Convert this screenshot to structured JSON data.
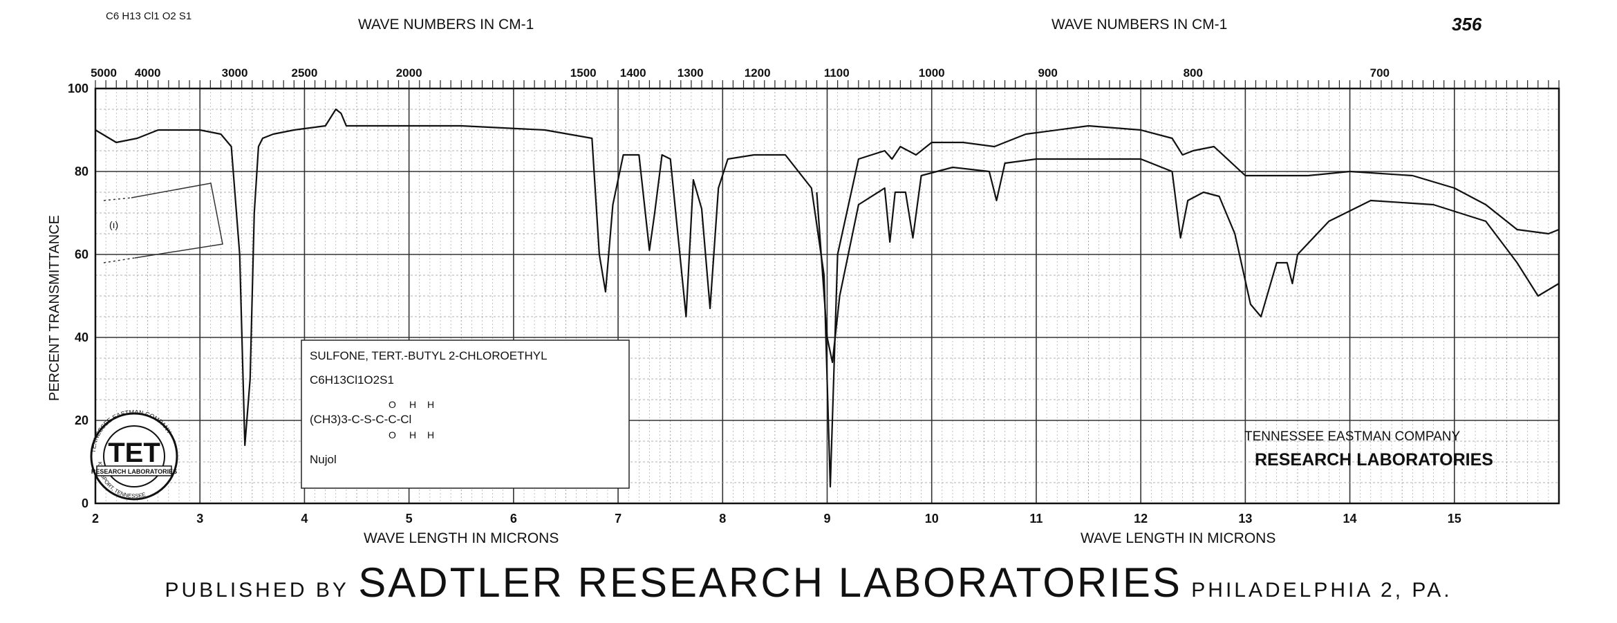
{
  "chart_data": {
    "type": "line",
    "top_left_note": "C6 H13 Cl1 O2 S1",
    "sample_number": "356",
    "top_axis_label_left": "WAVE NUMBERS IN CM-1",
    "top_axis_label_right": "WAVE NUMBERS IN CM-1",
    "xlabel_left": "WAVE LENGTH IN MICRONS",
    "xlabel_right": "WAVE LENGTH IN MICRONS",
    "ylabel": "PERCENT TRANSMITTANCE",
    "xlim": [
      2,
      16
    ],
    "ylim": [
      0,
      100
    ],
    "x_ticks": [
      2,
      3,
      4,
      5,
      6,
      7,
      8,
      9,
      10,
      11,
      12,
      13,
      14,
      15
    ],
    "y_ticks": [
      0,
      20,
      40,
      60,
      80,
      100
    ],
    "grid": true,
    "wavenumber_ticks": [
      {
        "label": "5000",
        "micron": 2.0
      },
      {
        "label": "4000",
        "micron": 2.5
      },
      {
        "label": "3000",
        "micron": 3.333
      },
      {
        "label": "2500",
        "micron": 4.0
      },
      {
        "label": "2000",
        "micron": 5.0
      },
      {
        "label": "1500",
        "micron": 6.667
      },
      {
        "label": "1400",
        "micron": 7.143
      },
      {
        "label": "1300",
        "micron": 7.692
      },
      {
        "label": "1200",
        "micron": 8.333
      },
      {
        "label": "1100",
        "micron": 9.091
      },
      {
        "label": "1000",
        "micron": 10.0
      },
      {
        "label": "900",
        "micron": 11.111
      },
      {
        "label": "800",
        "micron": 12.5
      },
      {
        "label": "700",
        "micron": 14.286
      }
    ],
    "series": [
      {
        "x": [
          2.0,
          2.2,
          2.4,
          2.6,
          2.8,
          3.0,
          3.2,
          3.3,
          3.38,
          3.43,
          3.48,
          3.52,
          3.56,
          3.6,
          3.7,
          3.9,
          4.2,
          4.3,
          4.35,
          4.4,
          4.7,
          5.5,
          6.3,
          6.75,
          6.82,
          6.88,
          6.95,
          7.05,
          7.2,
          7.3,
          7.35,
          7.42,
          7.5,
          7.65,
          7.72,
          7.8,
          7.88,
          7.96,
          8.05,
          8.3,
          8.6,
          8.85,
          8.97,
          9.03,
          9.1,
          9.3,
          9.55,
          9.62,
          9.7,
          9.85,
          10.0,
          10.3,
          10.6,
          10.9,
          11.5,
          12.0,
          12.3,
          12.4,
          12.5,
          12.7,
          13.0,
          13.3,
          13.6,
          14.0,
          14.6,
          15.0,
          15.3,
          15.6,
          15.9,
          16.0
        ],
        "y": [
          90,
          87,
          88,
          90,
          90,
          90,
          89,
          86,
          60,
          14,
          30,
          70,
          86,
          88,
          89,
          90,
          91,
          95,
          94,
          91,
          91,
          91,
          90,
          88,
          60,
          51,
          72,
          84,
          84,
          61,
          70,
          84,
          83,
          45,
          78,
          71,
          47,
          76,
          83,
          84,
          84,
          76,
          55,
          4,
          60,
          83,
          85,
          83,
          86,
          84,
          87,
          87,
          86,
          89,
          91,
          90,
          88,
          84,
          85,
          86,
          79,
          79,
          79,
          80,
          79,
          76,
          72,
          66,
          65,
          66
        ]
      },
      {
        "x": [
          8.9,
          9.0,
          9.05,
          9.12,
          9.3,
          9.55,
          9.6,
          9.65,
          9.75,
          9.82,
          9.9,
          10.2,
          10.55,
          10.62,
          10.7,
          11.0,
          11.5,
          12.0,
          12.3,
          12.38,
          12.45,
          12.6,
          12.75,
          12.9,
          13.05,
          13.15,
          13.3,
          13.4,
          13.45,
          13.5,
          13.8,
          14.2,
          14.8,
          15.3,
          15.6,
          15.8,
          16.0
        ],
        "y": [
          75,
          40,
          34,
          50,
          72,
          76,
          63,
          75,
          75,
          64,
          79,
          81,
          80,
          73,
          82,
          83,
          83,
          83,
          80,
          64,
          73,
          75,
          74,
          65,
          48,
          45,
          58,
          58,
          53,
          60,
          68,
          73,
          72,
          68,
          58,
          50,
          53
        ]
      }
    ]
  },
  "chart_label": {
    "line1": "SULFONE, TERT.-BUTYL 2-CHLOROETHYL",
    "line2": "C6H13Cl1O2S1",
    "line3": "(CH3)3-C-S-C-C-Cl",
    "above_s": "O",
    "above_c1": "H",
    "above_c2": "H",
    "below_s": "O",
    "below_c1": "H",
    "below_c2": "H",
    "phase": "Nujol"
  },
  "logo": {
    "letters": "TET",
    "ring_top": "TENNESSEE EASTMAN COMPANY",
    "ring_bottom": "KINGSPORT, TENNESSEE",
    "band": "RESEARCH LABORATORIES"
  },
  "stamp": {
    "line1": "TENNESSEE EASTMAN COMPANY",
    "line2": "RESEARCH LABORATORIES"
  },
  "footer": {
    "published_by": "PUBLISHED BY",
    "publisher": "SADTLER RESEARCH LABORATORIES",
    "city": "PHILADELPHIA 2, PA."
  }
}
